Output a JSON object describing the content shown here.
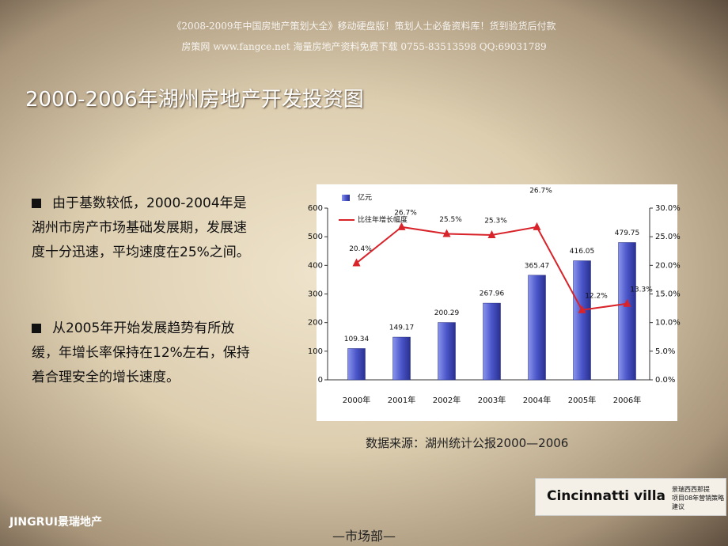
{
  "header": {
    "line1": "《2008-2009年中国房地产策划大全》移动硬盘版！策划人士必备资料库！货到验货后付款",
    "line2": "房策网 www.fangce.net  海量房地产资料免费下载  0755-83513598  QQ:69031789"
  },
  "slide_title": "2000-2006年湖州房地产开发投资图",
  "bullets": [
    "由于基数较低，2000-2004年是湖州市房产市场基础发展期，发展速度十分迅速，平均速度在25%之间。",
    "从2005年开始发展趋势有所放缓，年增长率保持在12%左右，保持着合理安全的增长速度。"
  ],
  "chart_data": {
    "type": "bar-line",
    "categories": [
      "2000年",
      "2001年",
      "2002年",
      "2003年",
      "2004年",
      "2005年",
      "2006年"
    ],
    "series": [
      {
        "name": "亿元",
        "type": "bar",
        "color": "#4a55c8",
        "values": [
          109.34,
          149.17,
          200.29,
          267.96,
          365.47,
          416.05,
          479.75
        ]
      },
      {
        "name": "比往年增长幅度",
        "type": "line",
        "axis": "y2",
        "color": "#d8232a",
        "values": [
          20.4,
          26.7,
          25.5,
          25.3,
          26.7,
          12.2,
          13.3
        ],
        "value_labels": [
          "20.4%",
          "26.7%",
          "25.5%",
          "25.3%",
          "26.7%",
          "12.2%",
          "13.3%"
        ]
      }
    ],
    "ylim": [
      0,
      600
    ],
    "yticks": [
      0,
      100,
      200,
      300,
      400,
      500,
      600
    ],
    "y2lim": [
      0,
      30
    ],
    "y2ticks": [
      {
        "value": 0,
        "label": "0.0%"
      },
      {
        "value": 5,
        "label": "5.0%"
      },
      {
        "value": 10,
        "label": "10.0%"
      },
      {
        "value": 15,
        "label": "15.0%"
      },
      {
        "value": 20,
        "label": "20.0%"
      },
      {
        "value": 25,
        "label": "25.0%"
      },
      {
        "value": 30,
        "label": "30.0%"
      }
    ],
    "legend": "top-left"
  },
  "source": "数据来源：湖州统计公报2000—2006",
  "logo": "JINGRUI景瑞地产",
  "brand": "Cincinnatti villa",
  "brand_sub": [
    "景瑞西西那提",
    "项目08年营销策略建议"
  ],
  "footer": "—市场部—"
}
